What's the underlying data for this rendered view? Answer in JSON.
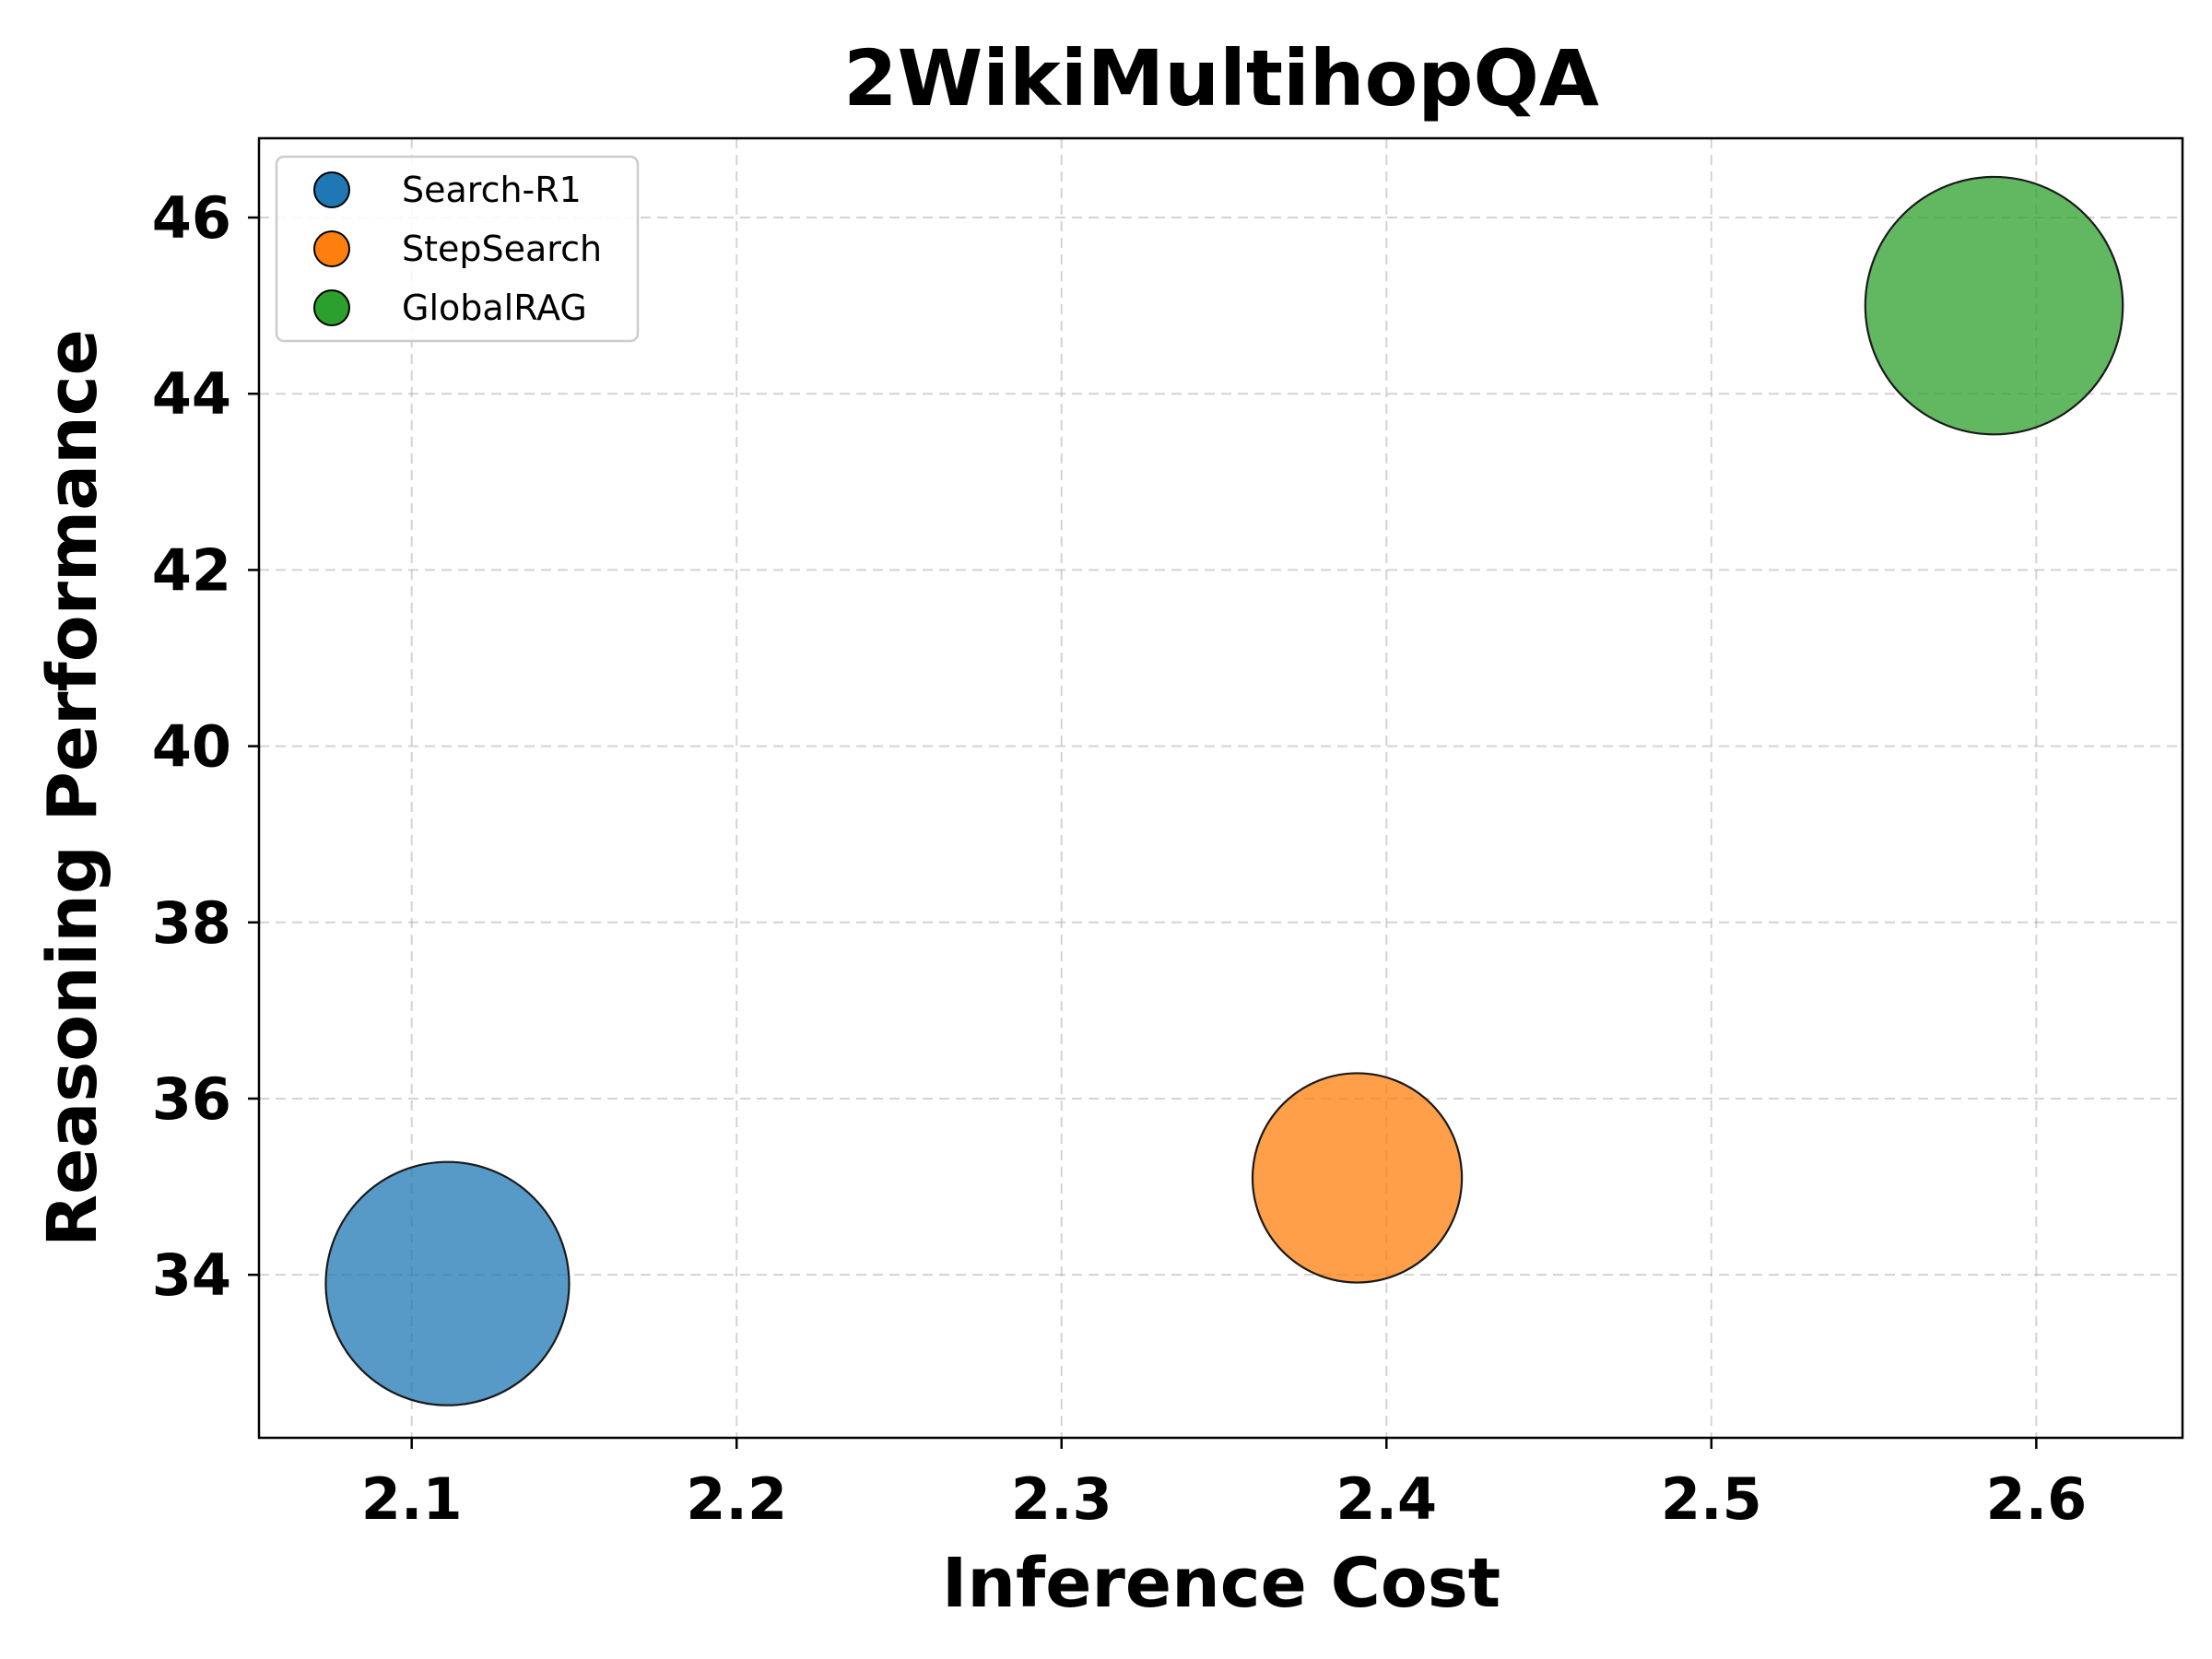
{
  "chart_data": {
    "type": "scatter",
    "title": "2WikiMultihopQA",
    "xlabel": "Inference Cost",
    "ylabel": "Reasoning Performance",
    "xlim": [
      2.053,
      2.645
    ],
    "ylim": [
      32.15,
      46.9
    ],
    "xticks": [
      "2.1",
      "2.2",
      "2.3",
      "2.4",
      "2.5",
      "2.6"
    ],
    "yticks": [
      "34",
      "36",
      "38",
      "40",
      "42",
      "44",
      "46"
    ],
    "grid": true,
    "legend_position": "upper-left",
    "series": [
      {
        "name": "Search-R1",
        "x": 2.111,
        "y": 33.9,
        "size": 1.0,
        "color": "#1f77b4"
      },
      {
        "name": "StepSearch",
        "x": 2.391,
        "y": 35.1,
        "size": 0.74,
        "color": "#ff7f0e"
      },
      {
        "name": "GlobalRAG",
        "x": 2.587,
        "y": 45.0,
        "size": 1.12,
        "color": "#2ca02c"
      }
    ]
  }
}
